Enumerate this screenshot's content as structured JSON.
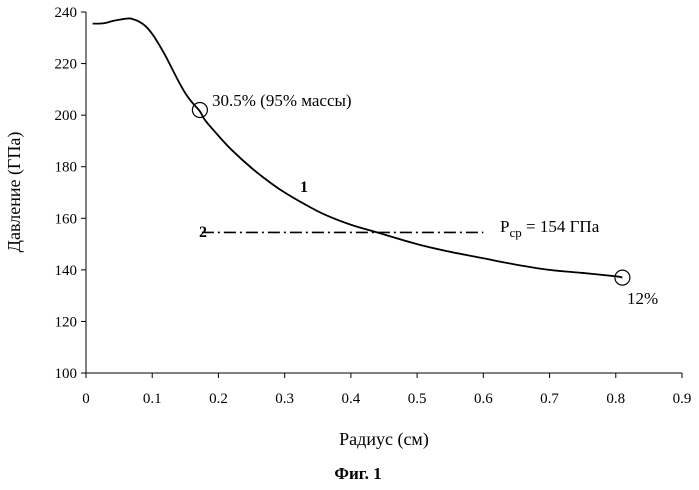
{
  "chart_data": {
    "type": "line",
    "title": "",
    "xlabel": "Радиус (см)",
    "ylabel": "Давление (ГПа)",
    "xlim": [
      0,
      0.9
    ],
    "ylim": [
      100,
      240
    ],
    "x_ticks": [
      0,
      0.1,
      0.2,
      0.3,
      0.4,
      0.5,
      0.6,
      0.7,
      0.8,
      0.9
    ],
    "x_tick_labels": [
      "0",
      "0.1",
      "0.2",
      "0.3",
      "0.4",
      "0.5",
      "0.6",
      "0.7",
      "0.8",
      "0.9"
    ],
    "y_ticks": [
      100,
      120,
      140,
      160,
      180,
      200,
      220,
      240
    ],
    "y_tick_labels": [
      "100",
      "120",
      "140",
      "160",
      "180",
      "200",
      "220",
      "240"
    ],
    "grid": false,
    "series": [
      {
        "name": "1",
        "style": "solid",
        "x": [
          0.01,
          0.02,
          0.03,
          0.04,
          0.05,
          0.06,
          0.065,
          0.07,
          0.08,
          0.09,
          0.1,
          0.11,
          0.12,
          0.13,
          0.14,
          0.15,
          0.16,
          0.172,
          0.18,
          0.2,
          0.22,
          0.25,
          0.28,
          0.3,
          0.33,
          0.36,
          0.4,
          0.44,
          0.5,
          0.55,
          0.6,
          0.65,
          0.7,
          0.75,
          0.8,
          0.81
        ],
        "y": [
          235.5,
          235.5,
          235.8,
          236.5,
          237,
          237.4,
          237.5,
          237.3,
          236.3,
          234.5,
          231.5,
          227.5,
          223,
          218,
          213,
          208.5,
          205,
          201.5,
          198,
          192,
          186.5,
          179.5,
          173.5,
          170,
          165.5,
          161.5,
          157.5,
          154.5,
          150,
          147,
          144.5,
          142,
          140,
          138.8,
          137.5,
          137
        ]
      },
      {
        "name": "2",
        "style": "dash-dot",
        "x": [
          0.175,
          0.6
        ],
        "y": [
          154.5,
          154.5
        ]
      }
    ],
    "markers": [
      {
        "x": 0.172,
        "y": 202,
        "label": "30.5% (95% массы)"
      },
      {
        "x": 0.81,
        "y": 137,
        "label": "12%"
      }
    ],
    "annotations": [
      {
        "text": "P",
        "sub": "ср",
        "rest": " = 154 ГПа",
        "x": 0.62,
        "y": 156
      }
    ]
  },
  "caption": "Фиг. 1"
}
